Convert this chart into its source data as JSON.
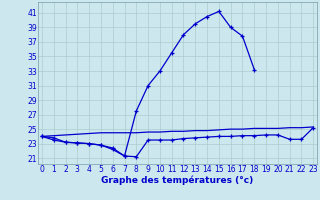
{
  "xlabel": "Graphe des températures (°c)",
  "bg_color": "#cce8ee",
  "line_color": "#0000cc",
  "grid_color": "#aacccc",
  "x_ticks": [
    0,
    1,
    2,
    3,
    4,
    5,
    6,
    7,
    8,
    9,
    10,
    11,
    12,
    13,
    14,
    15,
    16,
    17,
    18,
    19,
    20,
    21,
    22,
    23
  ],
  "y_ticks": [
    21,
    23,
    25,
    27,
    29,
    31,
    33,
    35,
    37,
    39,
    41
  ],
  "ylim": [
    20.2,
    42.5
  ],
  "xlim": [
    -0.3,
    23.3
  ],
  "max_temps": [
    24.0,
    23.5,
    23.2,
    23.1,
    23.0,
    22.8,
    22.4,
    21.3,
    27.5,
    31.0,
    33.0,
    35.5,
    38.0,
    39.5,
    40.5,
    41.2,
    39.0,
    37.8,
    33.2,
    null,
    null,
    null,
    null,
    null
  ],
  "min_temps": [
    24.0,
    23.8,
    23.2,
    23.1,
    23.0,
    22.8,
    22.2,
    21.3,
    21.2,
    23.5,
    23.5,
    23.5,
    23.7,
    23.8,
    23.9,
    24.0,
    24.0,
    24.1,
    24.1,
    24.2,
    24.2,
    23.6,
    23.6,
    25.2
  ],
  "avg_temps": [
    24.0,
    24.1,
    24.2,
    24.3,
    24.4,
    24.5,
    24.5,
    24.5,
    24.5,
    24.6,
    24.6,
    24.7,
    24.7,
    24.8,
    24.8,
    24.9,
    25.0,
    25.0,
    25.1,
    25.1,
    25.1,
    25.2,
    25.2,
    25.3
  ],
  "tick_fontsize": 5.5,
  "xlabel_fontsize": 6.5
}
